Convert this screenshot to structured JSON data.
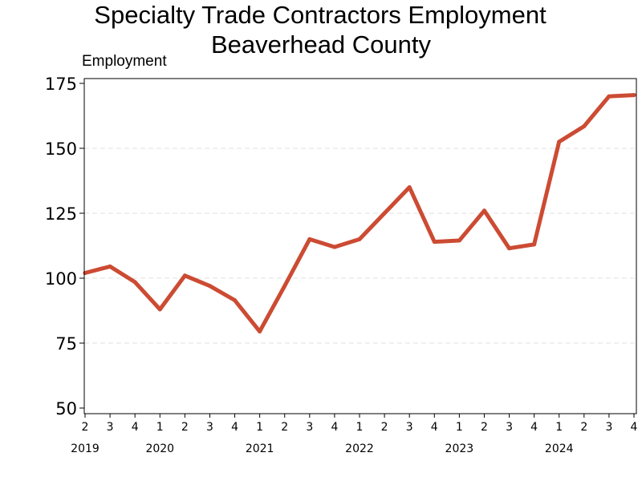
{
  "chart_data": {
    "type": "line",
    "title": "Specialty Trade Contractors Employment",
    "subtitle": "Beaverhead County",
    "ylabel": "Employment",
    "xlabel": "",
    "ylim": [
      50,
      175
    ],
    "yticks": [
      50,
      75,
      100,
      125,
      150,
      175
    ],
    "grid": "horizontal dashed",
    "legend": "none",
    "x_quarters": [
      "2",
      "3",
      "4",
      "1",
      "2",
      "3",
      "4",
      "1",
      "2",
      "3",
      "4",
      "1",
      "2",
      "3",
      "4",
      "1",
      "2",
      "3",
      "4",
      "1",
      "2",
      "3",
      "4"
    ],
    "years": [
      {
        "label": "2019",
        "index": 0
      },
      {
        "label": "2020",
        "index": 3
      },
      {
        "label": "2021",
        "index": 7
      },
      {
        "label": "2022",
        "index": 11
      },
      {
        "label": "2023",
        "index": 15
      },
      {
        "label": "2024",
        "index": 19
      }
    ],
    "series": [
      {
        "color": "#cc4b33",
        "values": [
          102,
          104.5,
          98.5,
          88,
          101,
          97,
          91.5,
          79.5,
          97,
          115,
          112,
          115,
          125,
          135,
          114,
          114.5,
          126,
          111.5,
          113,
          152.5,
          158.5,
          170,
          170.5
        ]
      }
    ]
  }
}
